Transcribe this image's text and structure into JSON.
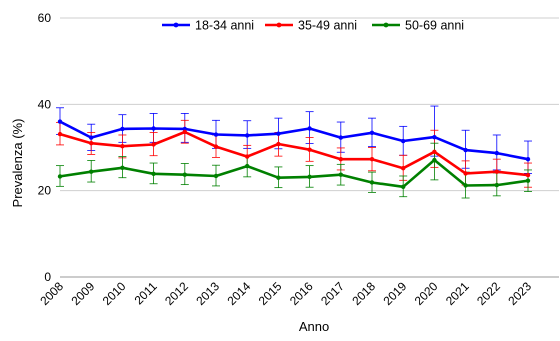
{
  "chart_data": {
    "type": "line",
    "xlabel": "Anno",
    "ylabel": "Prevalenza (%)",
    "ylim": [
      0,
      60
    ],
    "yticks": [
      0,
      20,
      40,
      60
    ],
    "grid": "horizontal",
    "legend": "top",
    "x": [
      "2008",
      "2009",
      "2010",
      "2011",
      "2012",
      "2013",
      "2014",
      "2015",
      "2016",
      "2017",
      "2018",
      "2019",
      "2020",
      "2021",
      "2022",
      "2023"
    ],
    "series": [
      {
        "name": "18-34 anni",
        "color": "#0000ff",
        "values": [
          36.0,
          32.3,
          34.3,
          34.4,
          34.3,
          33.0,
          32.8,
          33.2,
          34.4,
          32.3,
          33.4,
          31.5,
          32.4,
          29.4,
          28.7,
          27.3
        ],
        "lower": [
          33.0,
          29.3,
          31.2,
          31.2,
          31.2,
          29.8,
          29.8,
          29.7,
          30.9,
          28.9,
          30.2,
          28.2,
          28.0,
          25.2,
          24.8,
          24.0
        ],
        "upper": [
          39.2,
          35.4,
          37.6,
          37.9,
          37.9,
          36.3,
          36.2,
          36.8,
          38.3,
          35.9,
          36.8,
          34.9,
          39.6,
          34.0,
          32.9,
          31.5
        ]
      },
      {
        "name": "35-49 anni",
        "color": "#ff0000",
        "values": [
          33.1,
          31.0,
          30.3,
          30.7,
          33.6,
          30.2,
          27.9,
          30.8,
          29.5,
          27.3,
          27.3,
          25.2,
          29.0,
          24.0,
          24.4,
          23.6
        ],
        "lower": [
          30.6,
          28.4,
          27.6,
          28.1,
          31.0,
          27.7,
          25.4,
          28.0,
          26.8,
          24.8,
          24.6,
          22.4,
          25.4,
          21.3,
          21.5,
          20.8
        ],
        "upper": [
          35.8,
          33.5,
          32.9,
          33.5,
          36.3,
          32.9,
          30.5,
          33.5,
          32.3,
          29.9,
          30.0,
          28.2,
          34.0,
          26.9,
          27.3,
          26.4
        ]
      },
      {
        "name": "50-69 anni",
        "color": "#008000",
        "values": [
          23.3,
          24.4,
          25.3,
          23.9,
          23.7,
          23.4,
          25.7,
          23.0,
          23.2,
          23.7,
          21.9,
          20.9,
          27.1,
          21.2,
          21.3,
          22.3
        ],
        "lower": [
          21.0,
          22.0,
          23.0,
          21.6,
          21.4,
          21.1,
          23.2,
          20.7,
          20.8,
          21.3,
          19.6,
          18.6,
          22.5,
          18.3,
          18.8,
          19.8
        ],
        "upper": [
          25.8,
          27.0,
          27.9,
          26.4,
          26.3,
          25.9,
          28.2,
          25.5,
          25.8,
          26.1,
          24.3,
          23.4,
          31.0,
          24.3,
          24.1,
          24.8
        ]
      }
    ]
  }
}
